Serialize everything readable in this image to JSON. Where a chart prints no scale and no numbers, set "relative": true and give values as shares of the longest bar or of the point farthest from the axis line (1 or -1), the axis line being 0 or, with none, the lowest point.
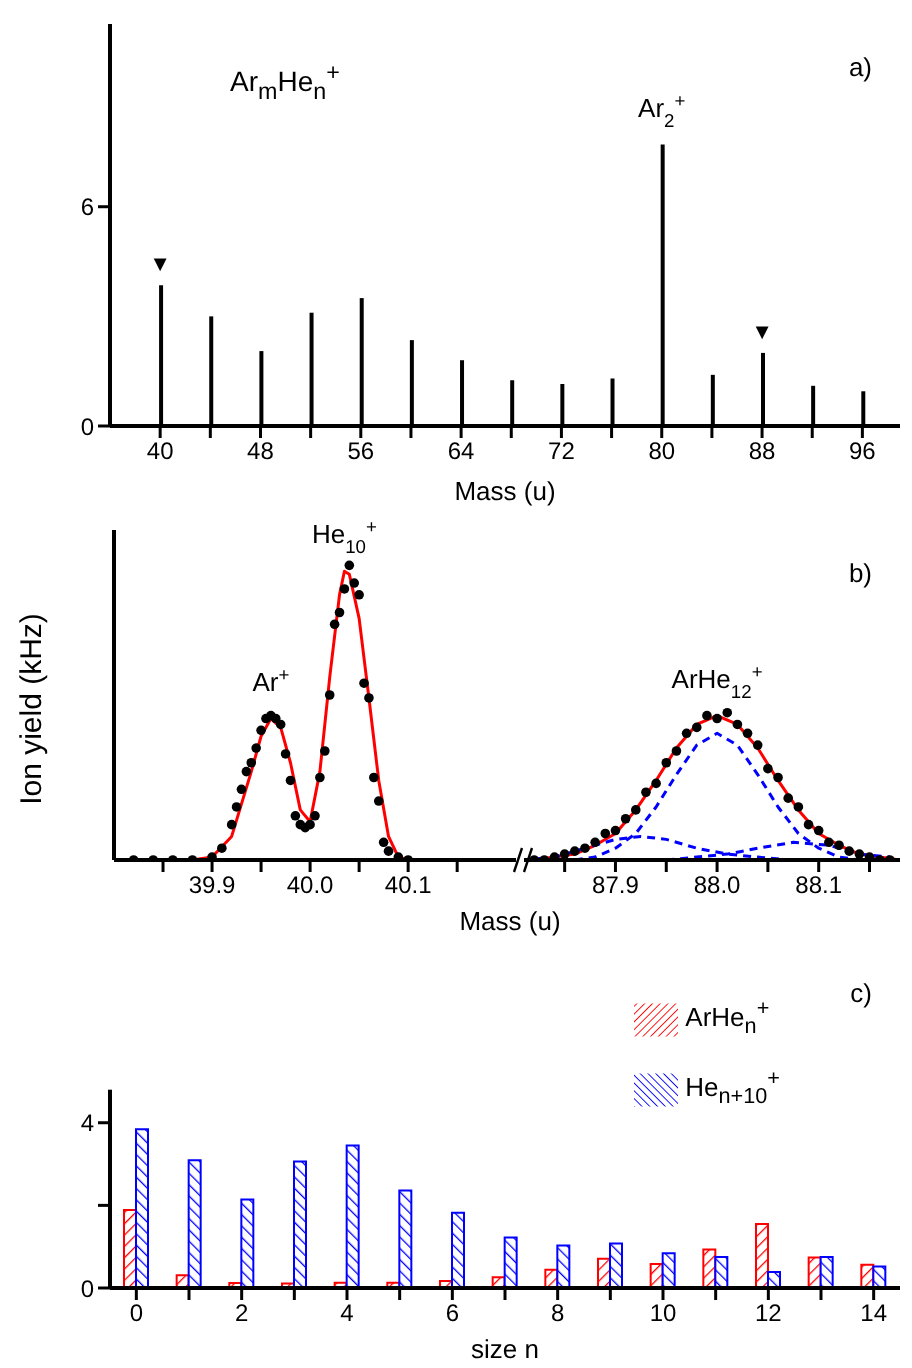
{
  "chart_data": [
    {
      "type": "bar",
      "x": [
        40,
        44,
        48,
        52,
        56,
        60,
        64,
        68,
        72,
        76,
        80,
        84,
        88,
        92,
        96
      ],
      "values": [
        3.85,
        3.0,
        2.05,
        3.1,
        3.5,
        2.35,
        1.8,
        1.25,
        1.15,
        1.3,
        7.7,
        1.4,
        2.0,
        1.1,
        0.95
      ],
      "color": "#000000",
      "xlim": [
        36,
        99
      ],
      "xticks": [
        40,
        {
          "value": 44,
          "label": null
        },
        48,
        {
          "value": 52,
          "label": null
        },
        56,
        {
          "value": 60,
          "label": null
        },
        64,
        {
          "value": 68,
          "label": null
        },
        72,
        {
          "value": 76,
          "label": null
        },
        80,
        {
          "value": 84,
          "label": null
        },
        88,
        {
          "value": 92,
          "label": null
        },
        96
      ],
      "ylim": [
        0,
        11
      ],
      "yticks": [
        0,
        6
      ],
      "xlabel": "Mass (u)",
      "annotations": [
        "Ar$_{m}$He$_{n}$$^{+}$",
        "a)",
        {
          "text": "Ar$_{2}$$^{+}$",
          "x": 80,
          "y": 7.7
        },
        {
          "text": "▼",
          "x": 40,
          "y": 3.85
        },
        {
          "text": "▼",
          "x": 88,
          "y": 2.0
        }
      ]
    },
    {
      "type": "scatter",
      "relative": true,
      "ylabel": "Ion yield (kHz)",
      "xlabel": "Mass (u)",
      "xlim": [
        39.8,
        40.21
      ],
      "xticks": [
        {
          "value": 39.85,
          "label": null
        },
        39.9,
        {
          "value": 39.95,
          "label": null
        },
        {
          "value": 40,
          "label": "40.0"
        },
        {
          "value": 40.05,
          "label": null
        },
        40.1,
        {
          "value": 40.15,
          "label": null
        }
      ],
      "series": [
        {
          "marker": "circle",
          "color": "#000000",
          "x": [
            39.82,
            39.84,
            39.86,
            39.88,
            39.9,
            39.91,
            39.92,
            39.925,
            39.93,
            39.935,
            39.94,
            39.945,
            39.95,
            39.955,
            39.96,
            39.965,
            39.97,
            39.975,
            39.98,
            39.985,
            39.99,
            39.995,
            40.0,
            40.005,
            40.01,
            40.015,
            40.02,
            40.025,
            40.03,
            40.035,
            40.04,
            40.045,
            40.05,
            40.055,
            40.06,
            40.065,
            40.07,
            40.075,
            40.08,
            40.09,
            40.1
          ],
          "values": [
            0.0,
            0.0,
            0.0,
            0.0,
            0.01,
            0.04,
            0.12,
            0.18,
            0.24,
            0.3,
            0.33,
            0.38,
            0.44,
            0.48,
            0.49,
            0.48,
            0.46,
            0.36,
            0.27,
            0.15,
            0.12,
            0.11,
            0.12,
            0.15,
            0.28,
            0.37,
            0.56,
            0.8,
            0.84,
            0.92,
            1.0,
            0.94,
            0.9,
            0.6,
            0.55,
            0.28,
            0.2,
            0.06,
            0.03,
            0.01,
            0.0
          ]
        },
        {
          "type": "line",
          "marker": "none",
          "color": "#ff0000",
          "x": [
            39.8,
            39.88,
            39.9,
            39.92,
            39.94,
            39.95,
            39.96,
            39.97,
            39.98,
            39.99,
            40.0,
            40.01,
            40.02,
            40.03,
            40.035,
            40.04,
            40.05,
            40.06,
            40.07,
            40.08,
            40.09,
            40.1,
            40.21
          ],
          "values": [
            0,
            0,
            0.01,
            0.08,
            0.3,
            0.42,
            0.48,
            0.45,
            0.33,
            0.17,
            0.13,
            0.3,
            0.62,
            0.9,
            0.98,
            0.97,
            0.82,
            0.55,
            0.27,
            0.08,
            0.01,
            0,
            0
          ]
        }
      ],
      "annotations": [
        {
          "text": "Ar$^{+}$",
          "x": 39.96,
          "y": 0.48
        },
        {
          "text": "He$_{10}$$^{+}$",
          "x": 40.035,
          "y": 0.98
        }
      ]
    },
    {
      "type": "scatter",
      "relative": true,
      "xlim": [
        87.81,
        88.18
      ],
      "xticks": [
        {
          "value": 87.85,
          "label": null
        },
        87.9,
        {
          "value": 87.95,
          "label": null
        },
        {
          "value": 88,
          "label": "88.0"
        },
        {
          "value": 88.05,
          "label": null
        },
        88.1,
        {
          "value": 88.15,
          "label": null
        }
      ],
      "series": [
        {
          "marker": "circle",
          "color": "#000000",
          "x": [
            87.82,
            87.83,
            87.84,
            87.85,
            87.86,
            87.87,
            87.88,
            87.89,
            87.9,
            87.91,
            87.92,
            87.93,
            87.94,
            87.95,
            87.96,
            87.97,
            87.98,
            87.99,
            88.0,
            88.01,
            88.02,
            88.03,
            88.04,
            88.05,
            88.06,
            88.07,
            88.08,
            88.09,
            88.1,
            88.11,
            88.12,
            88.13,
            88.14,
            88.15,
            88.16,
            88.17
          ],
          "values": [
            0,
            0,
            0.02,
            0.04,
            0.06,
            0.08,
            0.12,
            0.18,
            0.2,
            0.28,
            0.34,
            0.46,
            0.52,
            0.66,
            0.74,
            0.86,
            0.9,
            0.98,
            0.96,
            1.0,
            0.92,
            0.86,
            0.78,
            0.62,
            0.56,
            0.42,
            0.36,
            0.24,
            0.2,
            0.12,
            0.1,
            0.06,
            0.04,
            0.02,
            0,
            0
          ]
        },
        {
          "type": "line",
          "marker": "none",
          "color": "#ff0000",
          "x": [
            87.82,
            87.84,
            87.86,
            87.88,
            87.9,
            87.92,
            87.94,
            87.96,
            87.98,
            88.0,
            88.02,
            88.04,
            88.06,
            88.08,
            88.1,
            88.12,
            88.14,
            88.16,
            88.18
          ],
          "values": [
            0,
            0.02,
            0.04,
            0.1,
            0.18,
            0.34,
            0.54,
            0.76,
            0.92,
            0.98,
            0.92,
            0.76,
            0.54,
            0.34,
            0.18,
            0.1,
            0.04,
            0.02,
            0
          ]
        },
        {
          "type": "line",
          "marker": "none",
          "line_style": "dashed",
          "color": "#0000ff",
          "x": [
            87.86,
            87.88,
            87.9,
            87.92,
            87.94,
            87.96,
            87.98,
            88.0,
            88.02,
            88.04,
            88.06,
            88.08,
            88.1,
            88.12,
            88.14
          ],
          "values": [
            0,
            0.02,
            0.08,
            0.18,
            0.36,
            0.58,
            0.78,
            0.86,
            0.78,
            0.58,
            0.36,
            0.18,
            0.08,
            0.02,
            0
          ]
        },
        {
          "type": "line",
          "marker": "none",
          "line_style": "dashed",
          "color": "#0000ff",
          "x": [
            87.81,
            87.84,
            87.87,
            87.9,
            87.925,
            87.95,
            87.98,
            88.01,
            88.04,
            88.07
          ],
          "values": [
            0,
            0.02,
            0.08,
            0.14,
            0.16,
            0.14,
            0.08,
            0.04,
            0.02,
            0
          ]
        },
        {
          "type": "line",
          "marker": "none",
          "line_style": "dashed",
          "color": "#0000ff",
          "x": [
            87.95,
            87.98,
            88.01,
            88.04,
            88.075,
            88.11,
            88.14,
            88.17
          ],
          "values": [
            0,
            0.02,
            0.04,
            0.08,
            0.12,
            0.1,
            0.04,
            0.02
          ]
        }
      ],
      "annotations": [
        "b)",
        {
          "text": "ArHe$_{12}$$^{+}$",
          "x": 88.0,
          "y": 0.98
        }
      ]
    },
    {
      "type": "bar",
      "categories": [
        "0",
        null,
        "2",
        null,
        "4",
        null,
        "6",
        null,
        "8",
        null,
        "10",
        null,
        "12",
        null,
        "14"
      ],
      "series": [
        {
          "name": "ArHe$_{n}$$^{+}$",
          "color": "#ff0000",
          "values": [
            1.89,
            0.31,
            0.12,
            0.11,
            0.13,
            0.13,
            0.17,
            0.26,
            0.44,
            0.71,
            0.58,
            0.93,
            1.55,
            0.74,
            0.56
          ]
        },
        {
          "name": "He$_{n+10}$$^{+}$",
          "color": "#0000ff",
          "values": [
            3.84,
            3.09,
            2.14,
            3.06,
            3.45,
            2.36,
            1.82,
            1.22,
            1.03,
            1.08,
            0.84,
            0.75,
            0.39,
            0.75,
            0.52
          ]
        }
      ],
      "ylim": [
        0,
        4.8
      ],
      "yticks": [
        0,
        {
          "value": 2,
          "label": null
        },
        4
      ],
      "xlabel": "size n",
      "legend": "top right",
      "annotations": [
        "c)"
      ]
    }
  ]
}
